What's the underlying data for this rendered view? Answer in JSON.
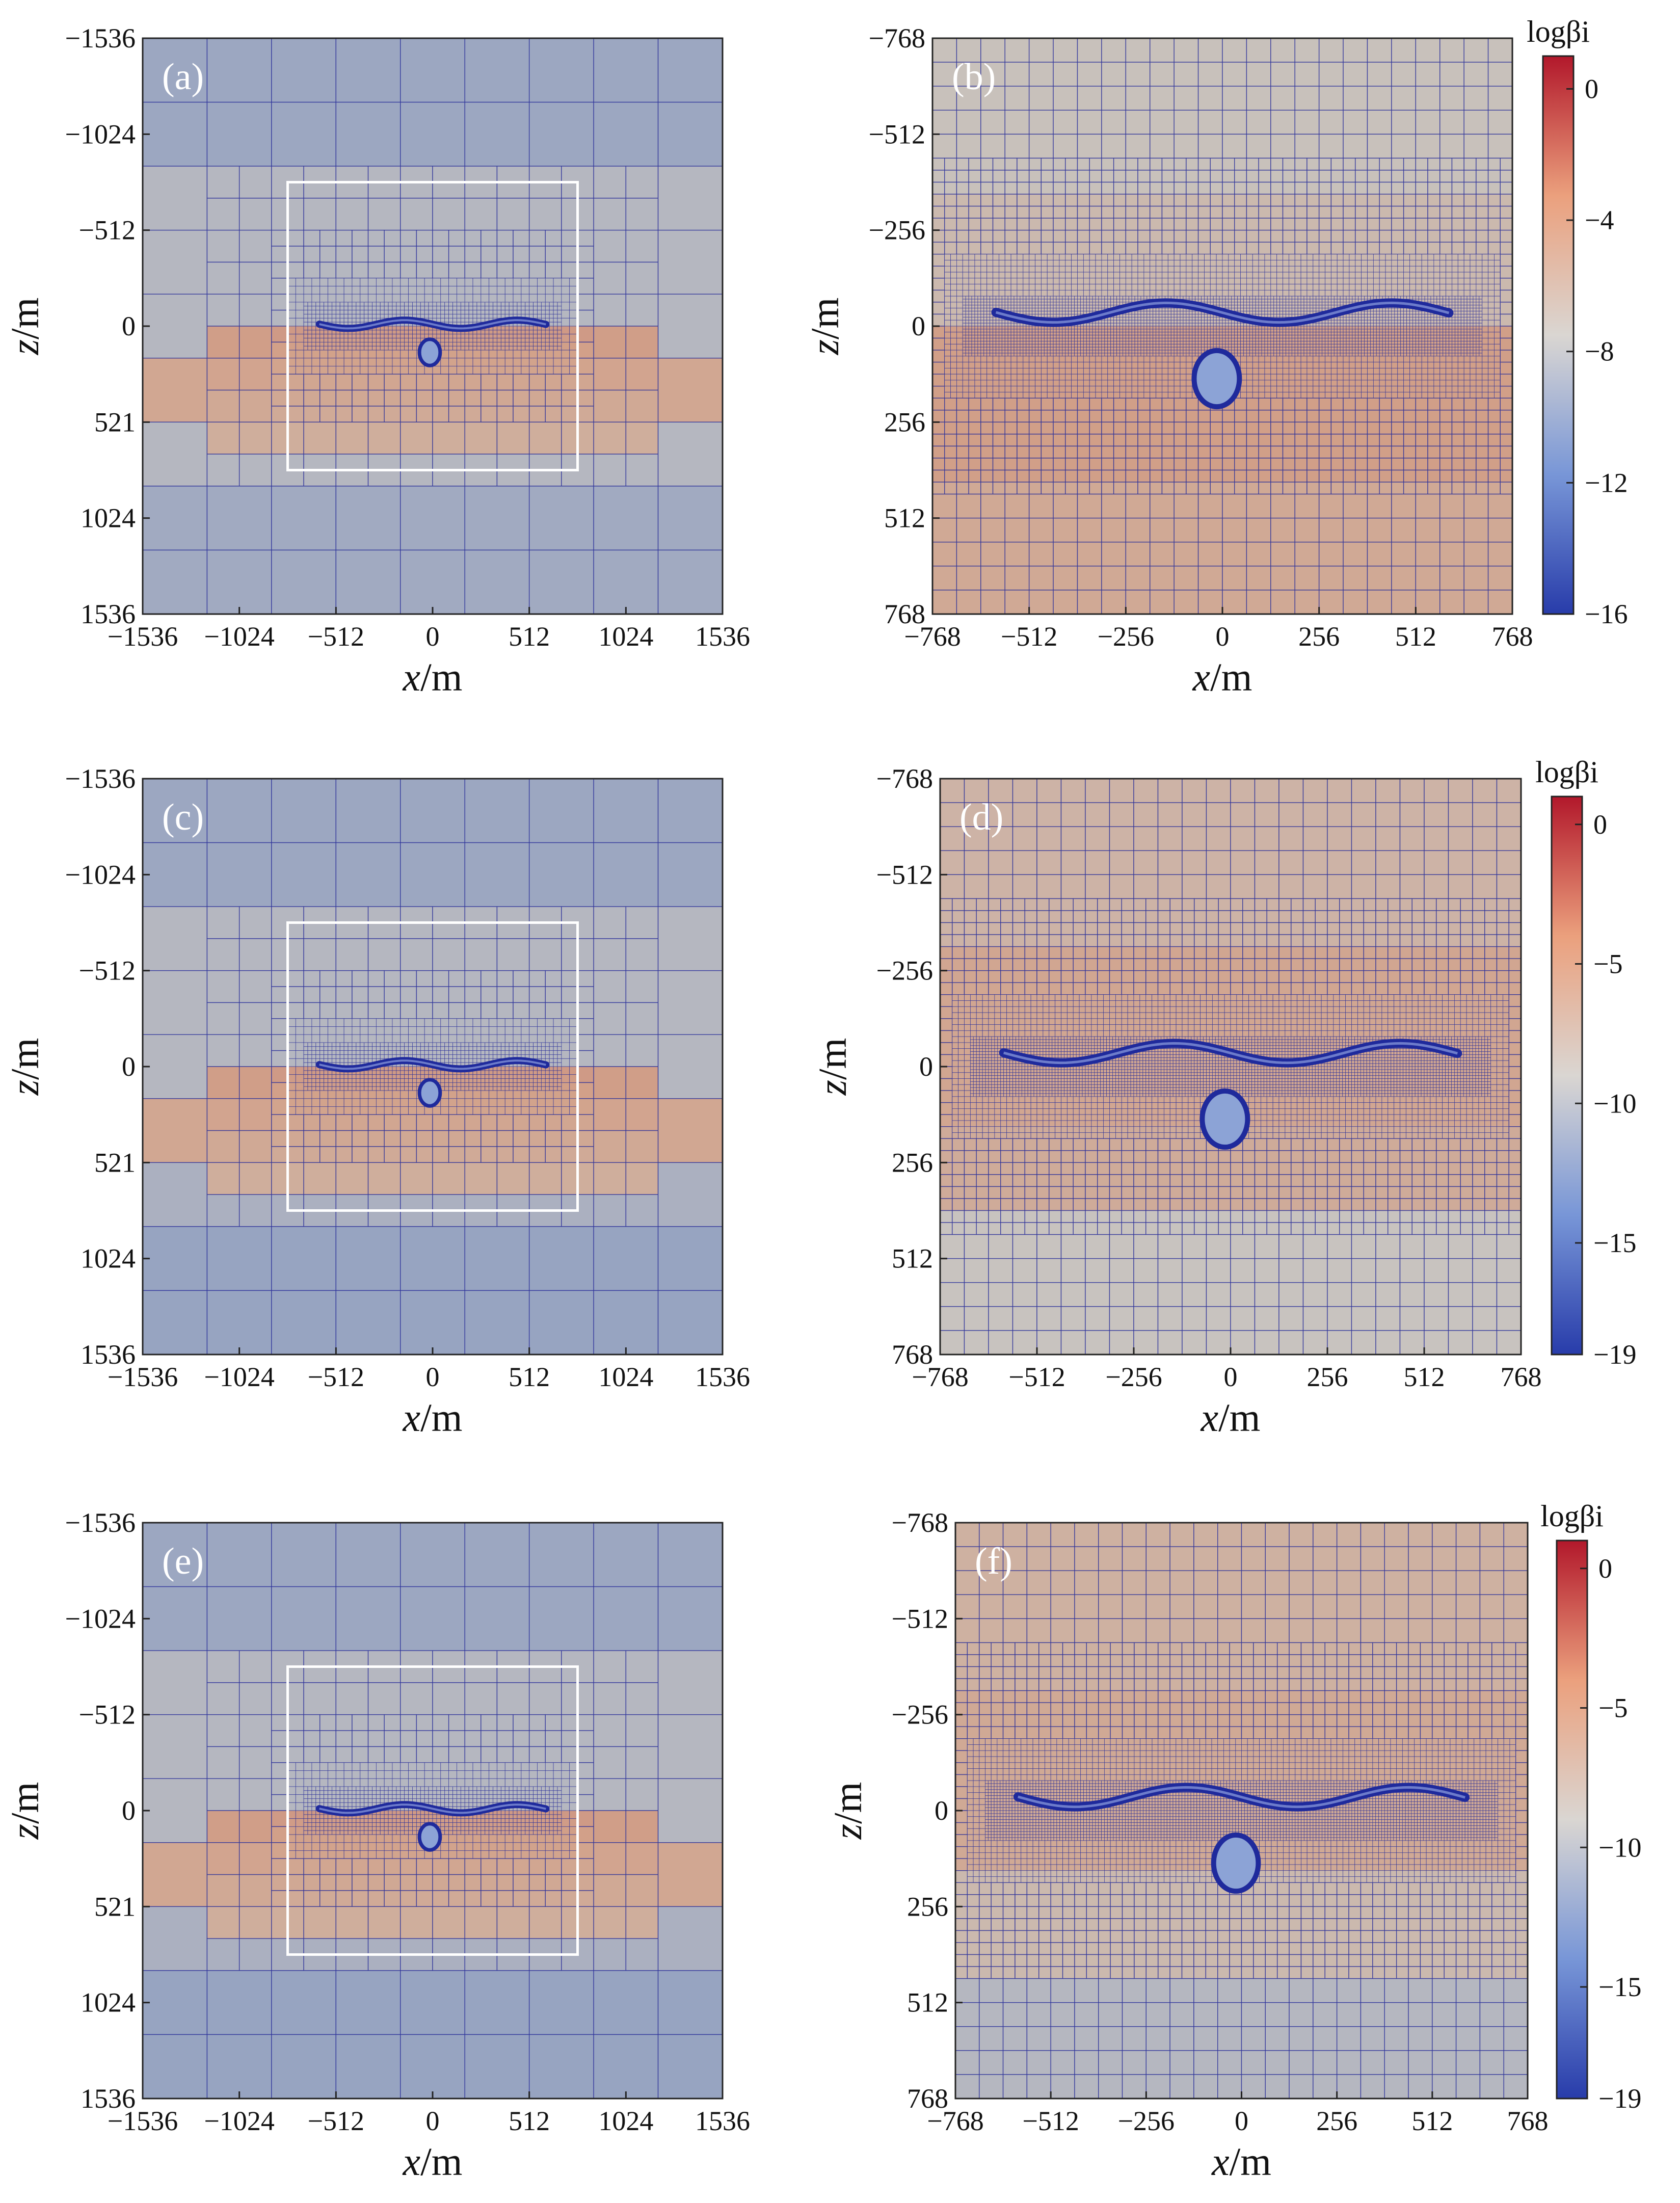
{
  "figure": {
    "panel_labels": [
      "(a)",
      "(b)",
      "(c)",
      "(d)",
      "(e)",
      "(f)"
    ]
  },
  "chart_data": [
    {
      "panel": "(a)",
      "type": "heatmap",
      "title": "",
      "xlabel": "x/m",
      "ylabel": "z/m",
      "xlim": [
        -1536,
        1536
      ],
      "ylim": [
        -1536,
        1536
      ],
      "xticks": [
        "-1536",
        "-1024",
        "-512",
        "0",
        "512",
        "1024",
        "1536"
      ],
      "yticks": [
        "-1536",
        "-1024",
        "-512",
        "0",
        "521",
        "1024",
        "1536"
      ],
      "zoom_box": {
        "x": [
          -768,
          768
        ],
        "z": [
          -768,
          768
        ]
      },
      "colorscale": "logβi",
      "clim": [
        -16,
        1
      ]
    },
    {
      "panel": "(b)",
      "type": "heatmap",
      "title": "",
      "xlabel": "x/m",
      "ylabel": "z/m",
      "xlim": [
        -768,
        768
      ],
      "ylim": [
        -768,
        768
      ],
      "xticks": [
        "-768",
        "-512",
        "-256",
        "0",
        "256",
        "512",
        "768"
      ],
      "yticks": [
        "-768",
        "-512",
        "-256",
        "0",
        "256",
        "512",
        "768"
      ],
      "colorbar": {
        "title": "logβi",
        "ticks": [
          "0",
          "-4",
          "-8",
          "-12",
          "-16"
        ],
        "range": [
          -16,
          1
        ]
      }
    },
    {
      "panel": "(c)",
      "type": "heatmap",
      "title": "",
      "xlabel": "x/m",
      "ylabel": "z/m",
      "xlim": [
        -1536,
        1536
      ],
      "ylim": [
        -1536,
        1536
      ],
      "xticks": [
        "-1536",
        "-1024",
        "-512",
        "0",
        "512",
        "1024",
        "1536"
      ],
      "yticks": [
        "-1536",
        "-1024",
        "-512",
        "0",
        "521",
        "1024",
        "1536"
      ],
      "zoom_box": {
        "x": [
          -768,
          768
        ],
        "z": [
          -768,
          768
        ]
      },
      "colorscale": "logβi",
      "clim": [
        -19,
        1
      ]
    },
    {
      "panel": "(d)",
      "type": "heatmap",
      "title": "",
      "xlabel": "x/m",
      "ylabel": "z/m",
      "xlim": [
        -768,
        768
      ],
      "ylim": [
        -768,
        768
      ],
      "xticks": [
        "-768",
        "-512",
        "-256",
        "0",
        "256",
        "512",
        "768"
      ],
      "yticks": [
        "-768",
        "-512",
        "-256",
        "0",
        "256",
        "512",
        "768"
      ],
      "colorbar": {
        "title": "logβi",
        "ticks": [
          "0",
          "-5",
          "-10",
          "-15",
          "-19"
        ],
        "range": [
          -19,
          1
        ]
      }
    },
    {
      "panel": "(e)",
      "type": "heatmap",
      "title": "",
      "xlabel": "x/m",
      "ylabel": "z/m",
      "xlim": [
        -1536,
        1536
      ],
      "ylim": [
        -1536,
        1536
      ],
      "xticks": [
        "-1536",
        "-1024",
        "-512",
        "0",
        "512",
        "1024",
        "1536"
      ],
      "yticks": [
        "-1536",
        "-1024",
        "-512",
        "0",
        "521",
        "1024",
        "1536"
      ],
      "zoom_box": {
        "x": [
          -768,
          768
        ],
        "z": [
          -768,
          768
        ]
      },
      "colorscale": "logβi",
      "clim": [
        -19,
        1
      ]
    },
    {
      "panel": "(f)",
      "type": "heatmap",
      "title": "",
      "xlabel": "x/m",
      "ylabel": "z/m",
      "xlim": [
        -768,
        768
      ],
      "ylim": [
        -768,
        768
      ],
      "xticks": [
        "-768",
        "-512",
        "-256",
        "0",
        "256",
        "512",
        "768"
      ],
      "yticks": [
        "-768",
        "-512",
        "-256",
        "0",
        "256",
        "512",
        "768"
      ],
      "colorbar": {
        "title": "logβi",
        "ticks": [
          "0",
          "-5",
          "-10",
          "-15",
          "-19"
        ],
        "range": [
          -19,
          1
        ]
      }
    }
  ],
  "colors": {
    "mesh_line": "#2a2f9a",
    "feature": "#1f2a9c",
    "zoom_box": "#ffffff",
    "red_high": "#c8373a",
    "neutral": "#ddd8d2",
    "blue_low": "#3a4fb0"
  }
}
